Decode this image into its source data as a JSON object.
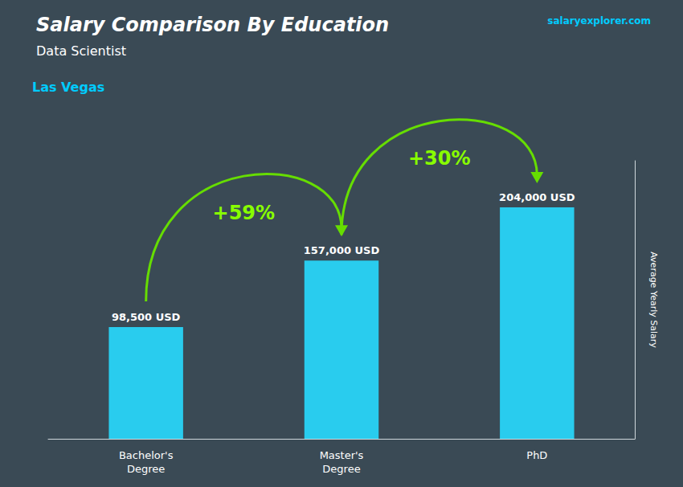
{
  "chart_data": {
    "type": "bar",
    "title": "Salary Comparison By Education",
    "subtitle": "Data Scientist",
    "ylabel": "Average Yearly Salary",
    "categories": [
      "Bachelor's\nDegree",
      "Master's\nDegree",
      "PhD"
    ],
    "values": [
      98500,
      157000,
      204000
    ],
    "value_labels": [
      "98,500 USD",
      "157,000 USD",
      "204,000 USD"
    ],
    "data_labels": true,
    "color": "#29CCEE",
    "ylim": [
      0,
      245000
    ],
    "grid": false,
    "tick_labels": "x",
    "annotations": [
      {
        "text": "Las Vegas"
      },
      {
        "text": "salaryexplorer.com"
      },
      {
        "text": "+59%",
        "from": "Bachelor's\nDegree",
        "to": "Master's\nDegree"
      },
      {
        "text": "+30%",
        "from": "Master's\nDegree",
        "to": "PhD"
      }
    ]
  }
}
